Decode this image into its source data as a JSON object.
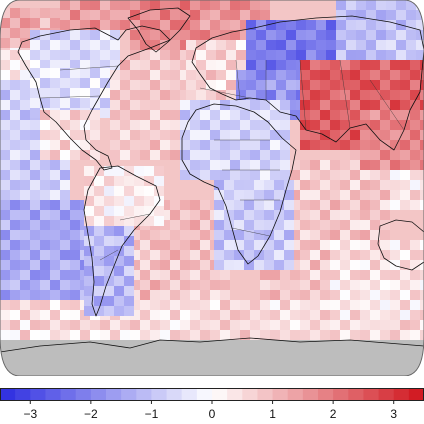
{
  "map": {
    "projection": "robinson",
    "missing_color": "#bdbdbd",
    "ocean_border_color": "#555555",
    "scale": {
      "min": -3.5,
      "max": 3.5,
      "step": 0.25,
      "cold_color": "#2b2be0",
      "neutral_color": "#ffffff",
      "warm_color": "#d0141c"
    },
    "regions": [
      {
        "name": "north-america-arctic",
        "value": 1.5
      },
      {
        "name": "alaska",
        "value": 1.2
      },
      {
        "name": "canada-south",
        "value": -0.6
      },
      {
        "name": "usa",
        "value": -0.5
      },
      {
        "name": "mexico",
        "value": 0.5
      },
      {
        "name": "greenland",
        "value": 1.8
      },
      {
        "name": "north-atlantic",
        "value": 0.8
      },
      {
        "name": "north-pacific-east",
        "value": -0.8
      },
      {
        "name": "north-pacific-west",
        "value": 0.4
      },
      {
        "name": "south-america-north",
        "value": 0.3
      },
      {
        "name": "south-america-south",
        "value": -1.2
      },
      {
        "name": "south-pacific-east",
        "value": -1.4
      },
      {
        "name": "europe-west",
        "value": 0.6
      },
      {
        "name": "europe-north",
        "value": 1.6
      },
      {
        "name": "russia-west",
        "value": -2.2
      },
      {
        "name": "siberia",
        "value": -1.0
      },
      {
        "name": "middle-east",
        "value": -1.8
      },
      {
        "name": "central-asia",
        "value": 2.4
      },
      {
        "name": "china",
        "value": 1.8
      },
      {
        "name": "africa-north",
        "value": -0.7
      },
      {
        "name": "africa-south",
        "value": -0.9
      },
      {
        "name": "indian-ocean",
        "value": 0.8
      },
      {
        "name": "south-atlantic",
        "value": 0.9
      },
      {
        "name": "southern-ocean",
        "value": 0.5
      },
      {
        "name": "australia-sea",
        "value": 0.4
      }
    ]
  },
  "colorbar": {
    "ticks": [
      {
        "value": -3,
        "label": "−3"
      },
      {
        "value": -2,
        "label": "−2"
      },
      {
        "value": -1,
        "label": "−1"
      },
      {
        "value": 0,
        "label": "0"
      },
      {
        "value": 1,
        "label": "1"
      },
      {
        "value": 2,
        "label": "2"
      },
      {
        "value": 3,
        "label": "3"
      }
    ]
  }
}
